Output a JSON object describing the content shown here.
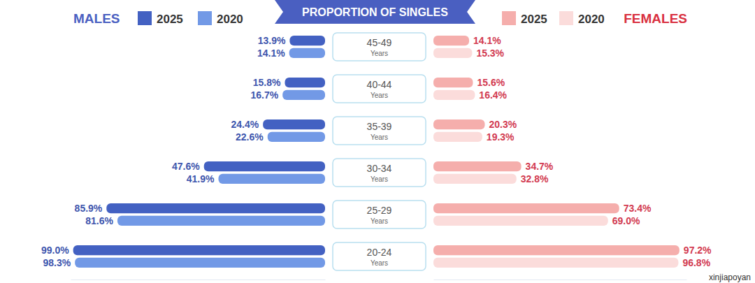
{
  "chart_data": {
    "type": "bar",
    "orientation": "horizontal",
    "title": "PROPORTION OF SINGLES",
    "categories": [
      "45-49",
      "40-44",
      "35-39",
      "30-34",
      "25-29",
      "20-24"
    ],
    "unit_label": "Years",
    "watermark": "xinjiapoyan",
    "data_labels": true,
    "tick_labels": false,
    "legend": "top",
    "panels": [
      {
        "name": "MALES",
        "xlim": [
          0,
          100
        ],
        "series": [
          {
            "name": "2025",
            "color": "#4361c2",
            "values": [
              13.9,
              15.8,
              24.4,
              47.6,
              85.9,
              99.0
            ],
            "value_labels": [
              "13.9%",
              "15.8%",
              "24.4%",
              "47.6%",
              "85.9%",
              "99.0%"
            ]
          },
          {
            "name": "2020",
            "color": "#7299e6",
            "values": [
              14.1,
              16.7,
              22.6,
              41.9,
              81.6,
              98.3
            ],
            "value_labels": [
              "14.1%",
              "16.7%",
              "22.6%",
              "41.9%",
              "81.6%",
              "98.3%"
            ]
          }
        ]
      },
      {
        "name": "FEMALES",
        "xlim": [
          0,
          100
        ],
        "series": [
          {
            "name": "2025",
            "color": "#f5aeac",
            "values": [
              14.1,
              15.6,
              20.3,
              34.7,
              73.4,
              97.2
            ],
            "value_labels": [
              "14.1%",
              "15.6%",
              "20.3%",
              "34.7%",
              "73.4%",
              "97.2%"
            ]
          },
          {
            "name": "2020",
            "color": "#fbdcdb",
            "values": [
              15.3,
              16.4,
              19.3,
              32.8,
              69.0,
              96.8
            ],
            "value_labels": [
              "15.3%",
              "16.4%",
              "19.3%",
              "32.8%",
              "69.0%",
              "96.8%"
            ]
          }
        ]
      }
    ]
  }
}
